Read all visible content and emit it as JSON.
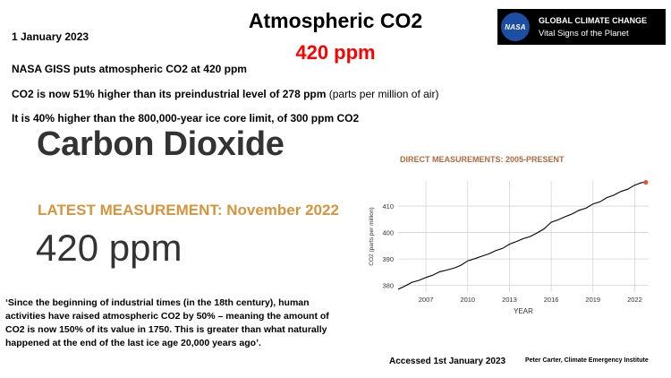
{
  "header": {
    "date": "1 January 2023",
    "title": "Atmospheric CO2",
    "title_value": "420 ppm"
  },
  "nasa_banner": {
    "logo_text": "NASA",
    "line1": "GLOBAL CLIMATE CHANGE",
    "line2": "Vital Signs of the Planet"
  },
  "statements": {
    "s1": "NASA GISS puts atmospheric CO2 at 420 ppm",
    "s2_bold": "CO2 is now 51%  higher than its preindustrial level of 278 ppm",
    "s2_plain": " (parts per million of air)",
    "s3": "It is 40% higher than the 800,000-year  ice core limit, of 300 ppm CO2"
  },
  "panel": {
    "heading": "Carbon Dioxide",
    "latest": "LATEST MEASUREMENT: November 2022",
    "value": "420 ppm"
  },
  "quote": "‘Since the beginning of industrial  times (in the 18th century), human activities have raised atmospheric  CO2 by 50% – meaning the amount of CO2 is now 150% of its value in 1750. This is greater than what naturally  happened at the end of the last ice age 20,000 years ago’.",
  "footer": {
    "accessed": "Accessed 1st January 2023",
    "credit": "Peter Carter, Climate Emergency Institute"
  },
  "chart_data": {
    "type": "line",
    "title": "DIRECT MEASUREMENTS: 2005-PRESENT",
    "xlabel": "YEAR",
    "ylabel": "CO2 (parts per million)",
    "xlim": [
      2005.0,
      2023.0
    ],
    "ylim": [
      377.5,
      419.5
    ],
    "xticks": [
      2007,
      2010,
      2013,
      2016,
      2019,
      2022
    ],
    "yticks": [
      380,
      390,
      400,
      410
    ],
    "line_color": "#000000",
    "endpoint_color": "#e05a3a",
    "series": [
      {
        "x": [
          2005.0,
          2005.5,
          2006.0,
          2006.5,
          2007.0,
          2007.5,
          2008.0,
          2008.5,
          2009.0,
          2009.5,
          2010.0,
          2010.5,
          2011.0,
          2011.5,
          2012.0,
          2012.5,
          2013.0,
          2013.5,
          2014.0,
          2014.5,
          2015.0,
          2015.5,
          2016.0,
          2016.5,
          2017.0,
          2017.5,
          2018.0,
          2018.5,
          2019.0,
          2019.5,
          2020.0,
          2020.5,
          2021.0,
          2021.5,
          2022.0,
          2022.5,
          2022.8
        ],
        "y": [
          378.5,
          379.8,
          381.2,
          381.9,
          383.0,
          383.9,
          385.2,
          385.8,
          386.5,
          387.6,
          389.3,
          390.1,
          391.0,
          391.9,
          393.1,
          394.0,
          395.6,
          396.6,
          397.7,
          398.5,
          399.9,
          401.4,
          403.9,
          404.8,
          406.0,
          407.0,
          408.4,
          409.2,
          410.8,
          411.6,
          413.2,
          414.1,
          415.5,
          416.4,
          417.9,
          418.9,
          419.0
        ]
      }
    ]
  }
}
